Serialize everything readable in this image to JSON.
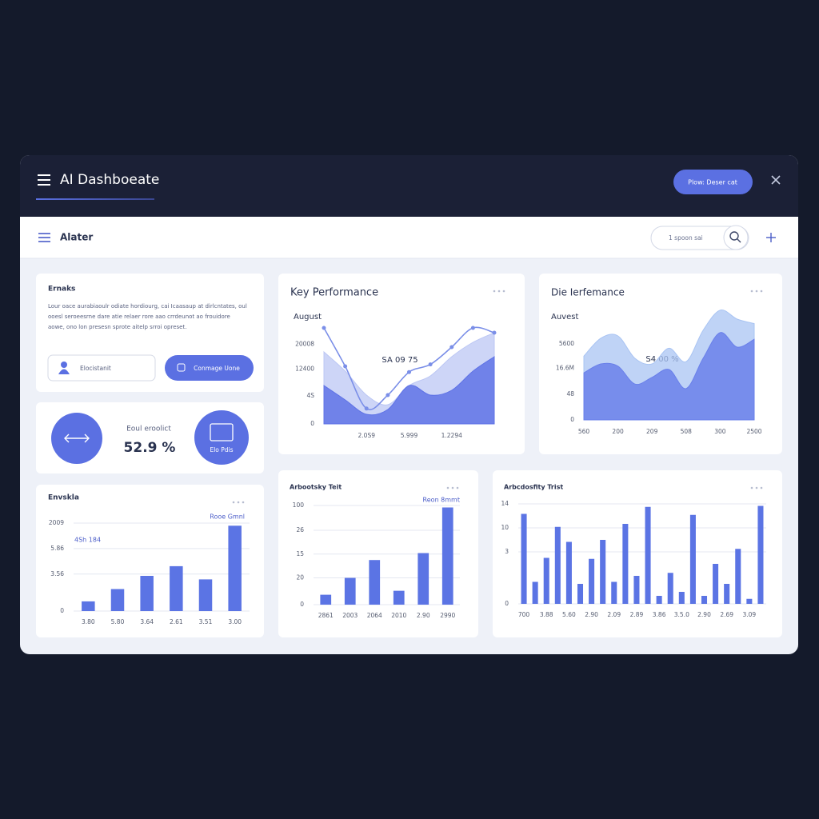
{
  "header": {
    "title": "AI Dashboeate",
    "button": "Plow: Deser cat"
  },
  "toolbar": {
    "title": "Alater",
    "search": "1 spoon sai"
  },
  "intro_card": {
    "title": "Ernaks",
    "text": [
      "Lour oace aurabiaoulr odiate hordiourg, cai Icaasaup at dirlcntates, oul",
      "ooesl seroeesrne dare atie relaer rore aao crrdeunot ao frouidore",
      "aowe, ono lon presesn sprote aitelp srroi opreset."
    ],
    "input": "Elocistanit",
    "button": "Conmage Uone"
  },
  "stat_card": {
    "label": "Eoul eroolict",
    "value": "52.9 %",
    "icon_label": "Elo Pdis"
  },
  "chart_data": [
    {
      "type": "bar",
      "title": "Envskla",
      "annotations": [
        "Rooe Gmnl",
        "4Sh 184"
      ],
      "categories": [
        "3.80",
        "5.80",
        "3.64",
        "2.61",
        "3.51",
        "3.00"
      ],
      "values": [
        11,
        25,
        40,
        51,
        36,
        97
      ],
      "color": "#5b74e4",
      "ylim": [
        0,
        100
      ],
      "yticks": [
        0,
        {
          "value": 42,
          "label": "3.56"
        },
        {
          "value": 71,
          "label": "5.86"
        },
        {
          "value": 100,
          "label": "2009"
        }
      ],
      "grid": true
    },
    {
      "type": "area",
      "title": "Key Performance",
      "subtitle": "August",
      "annotations": [
        "SA 09 75"
      ],
      "categories": [
        null,
        null,
        "2.0S9",
        null,
        "5.999",
        null,
        "1.2294",
        null,
        null
      ],
      "series": [
        {
          "color": "#bcc7f4",
          "values": [
            75,
            55,
            30,
            20,
            40,
            50,
            70,
            85,
            95
          ]
        },
        {
          "color": "#5f73e6",
          "values": [
            40,
            25,
            10,
            15,
            40,
            30,
            35,
            55,
            70
          ]
        },
        {
          "type": "line",
          "color": "#7b8fe8",
          "values": [
            100,
            60,
            16,
            30,
            54,
            62,
            80,
            100,
            95
          ]
        }
      ],
      "ylim": [
        0,
        100
      ],
      "yticks": [
        0,
        {
          "value": 29,
          "label": "4S"
        },
        {
          "value": 57,
          "label": "12400"
        },
        {
          "value": 83,
          "label": "20008"
        }
      ],
      "grid": false
    },
    {
      "type": "area",
      "title": "Die Ierfemance",
      "subtitle": "Auvest",
      "annotations": [
        "S4 00 %"
      ],
      "categories": [
        "560",
        null,
        "200",
        null,
        "209",
        null,
        "508",
        null,
        "300",
        null,
        "2500"
      ],
      "series": [
        {
          "color": "#a9c4f3",
          "values": [
            57,
            73,
            75,
            55,
            50,
            64,
            52,
            80,
            98,
            90,
            86
          ]
        },
        {
          "color": "#6a80ea",
          "values": [
            42,
            50,
            48,
            32,
            38,
            45,
            28,
            55,
            78,
            65,
            72
          ]
        }
      ],
      "ylim": [
        0,
        100
      ],
      "yticks": [
        0,
        {
          "value": 23,
          "label": "48"
        },
        {
          "value": 46,
          "label": "16.6M"
        },
        {
          "value": 68,
          "label": "5600"
        }
      ],
      "grid": false
    },
    {
      "type": "bar",
      "title": "Arbootsky Teit",
      "annotations": [
        "Reon 8mmt"
      ],
      "categories": [
        "2861",
        "2003",
        "2064",
        "2010",
        "2.90",
        "2990"
      ],
      "values": [
        10,
        27,
        45,
        14,
        52,
        98
      ],
      "color": "#5b74e4",
      "ylim": [
        0,
        100
      ],
      "yticks": [
        0,
        {
          "value": 27,
          "label": "20"
        },
        {
          "value": 51,
          "label": "15"
        },
        {
          "value": 75,
          "label": "26"
        },
        100
      ],
      "grid": true
    },
    {
      "type": "bar",
      "title": "Arbcdosfity Trist",
      "categories": [
        "700",
        null,
        "3.88",
        null,
        "5.60",
        null,
        "2.90",
        null,
        "2.09",
        null,
        "2.89",
        null,
        "3.86",
        null,
        "3.5.0",
        null,
        "2.90",
        null,
        "2.69",
        null,
        "3.09",
        null
      ],
      "values": [
        90,
        22,
        46,
        77,
        62,
        20,
        45,
        64,
        22,
        80,
        28,
        97,
        8,
        31,
        12,
        89,
        8,
        40,
        20,
        55,
        5,
        98
      ],
      "color": "#5b74e4",
      "ylim": [
        0,
        100
      ],
      "yticks": [
        0,
        {
          "value": 52,
          "label": "3"
        },
        {
          "value": 76,
          "label": "10"
        },
        {
          "value": 100,
          "label": "14"
        }
      ],
      "grid": true
    }
  ]
}
